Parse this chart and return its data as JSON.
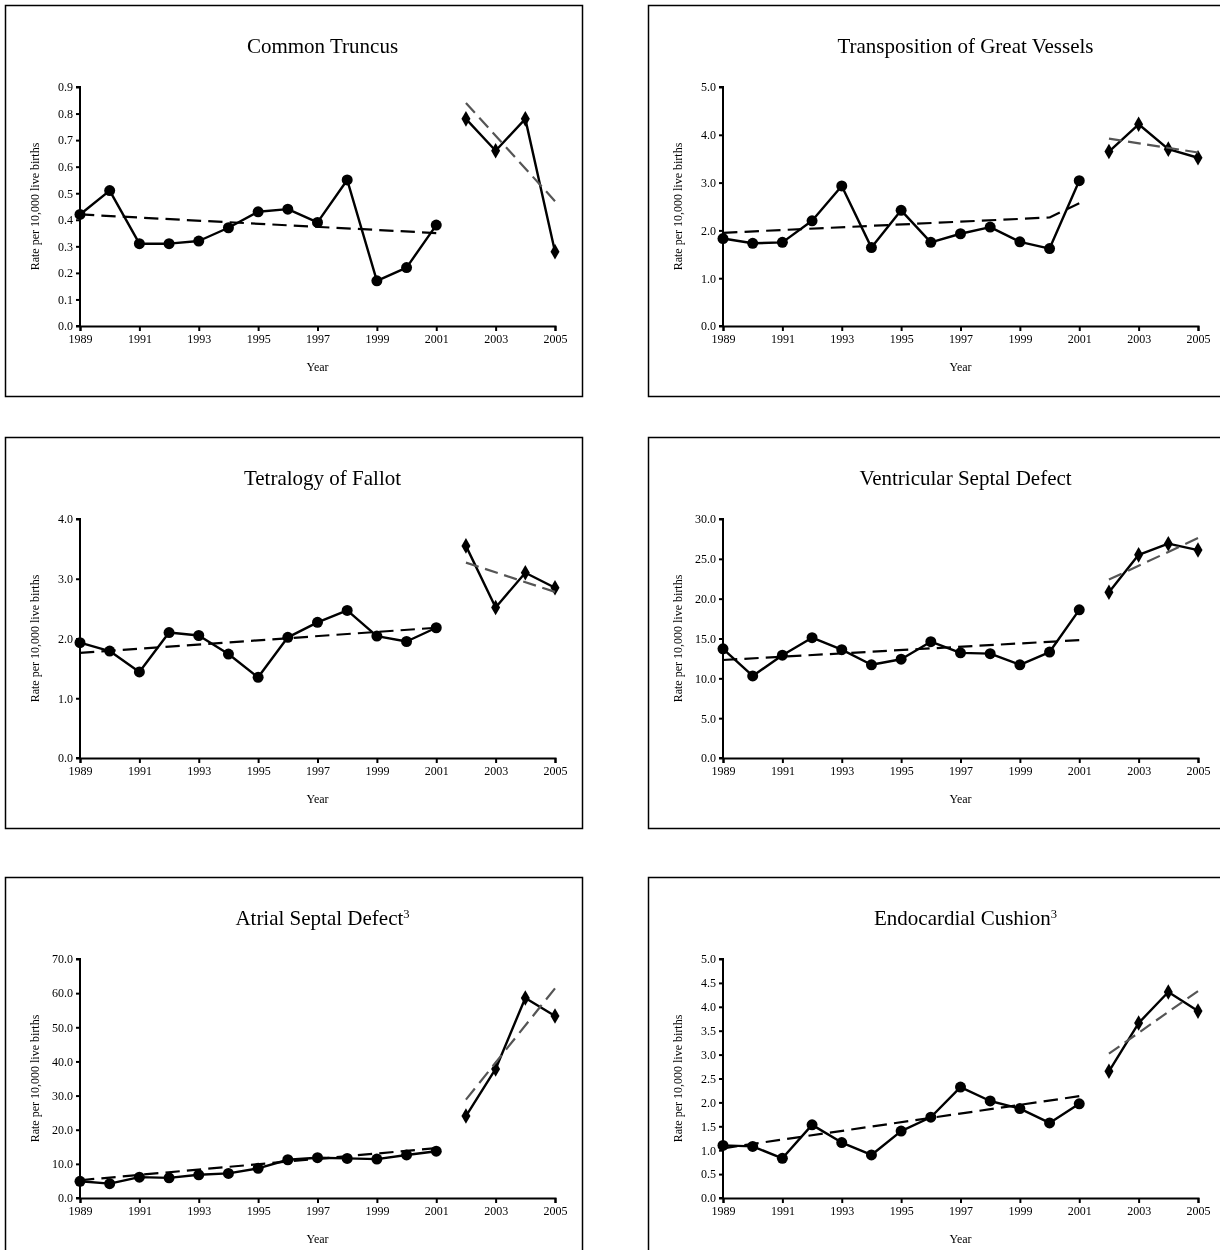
{
  "chart_data": [
    {
      "type": "line",
      "title": "Common Truncus",
      "xlabel": "Year",
      "ylabel": "Rate per 10,000 live births",
      "xlim": [
        1989,
        2005
      ],
      "xticks": [
        1989,
        1991,
        1993,
        1995,
        1997,
        1999,
        2001,
        2003,
        2005
      ],
      "ylim": [
        0,
        0.9
      ],
      "yticks": [
        {
          "value": 0,
          "label": "0.0"
        },
        {
          "value": 0.1,
          "label": "0.1"
        },
        {
          "value": 0.2,
          "label": "0.2"
        },
        {
          "value": 0.3,
          "label": "0.3"
        },
        {
          "value": 0.4,
          "label": "0.4"
        },
        {
          "value": 0.5,
          "label": "0.5"
        },
        {
          "value": 0.6,
          "label": "0.6"
        },
        {
          "value": 0.7,
          "label": "0.7"
        },
        {
          "value": 0.8,
          "label": "0.8"
        },
        {
          "value": 0.9,
          "label": "0.9"
        }
      ],
      "series": [
        {
          "color": "#000000",
          "marker": "circle",
          "line_style": "solid",
          "x": [
            1989,
            1990,
            1991,
            1992,
            1993,
            1994,
            1995,
            1996,
            1997,
            1998,
            1999,
            2000,
            2001
          ],
          "values": [
            0.42,
            0.51,
            0.31,
            0.31,
            0.32,
            0.37,
            0.43,
            0.44,
            0.39,
            0.55,
            0.17,
            0.22,
            0.38
          ]
        },
        {
          "color": "#000000",
          "marker": "diamond",
          "line_style": "solid",
          "x": [
            2002,
            2003,
            2004,
            2005
          ],
          "values": [
            0.78,
            0.66,
            0.78,
            0.28
          ]
        },
        {
          "color": "#000000",
          "marker": "none",
          "line_style": "dashed",
          "x": [
            1989,
            2001
          ],
          "values": [
            0.42,
            0.35
          ]
        },
        {
          "color": "#555555",
          "marker": "none",
          "line_style": "dashed",
          "x": [
            2002,
            2005
          ],
          "values": [
            0.84,
            0.47
          ]
        }
      ]
    },
    {
      "type": "line",
      "title": "Transposition of Great Vessels",
      "xlabel": "Year",
      "ylabel": "Rate per 10,000 live births",
      "xlim": [
        1989,
        2005
      ],
      "xticks": [
        1989,
        1991,
        1993,
        1995,
        1997,
        1999,
        2001,
        2003,
        2005
      ],
      "ylim": [
        0,
        5
      ],
      "yticks": [
        {
          "value": 0,
          "label": "0.0"
        },
        {
          "value": 1,
          "label": "1.0"
        },
        {
          "value": 2,
          "label": "2.0"
        },
        {
          "value": 3,
          "label": "3.0"
        },
        {
          "value": 4,
          "label": "4.0"
        },
        {
          "value": 5,
          "label": "5.0"
        }
      ],
      "series": [
        {
          "color": "#000000",
          "marker": "circle",
          "line_style": "solid",
          "x": [
            1989,
            1990,
            1991,
            1992,
            1993,
            1994,
            1995,
            1996,
            1997,
            1998,
            1999,
            2000,
            2001
          ],
          "values": [
            1.83,
            1.73,
            1.75,
            2.2,
            2.93,
            1.64,
            2.42,
            1.75,
            1.93,
            2.07,
            1.76,
            1.62,
            3.04
          ]
        },
        {
          "color": "#000000",
          "marker": "diamond",
          "line_style": "solid",
          "x": [
            2002,
            2003,
            2004,
            2005
          ],
          "values": [
            3.65,
            4.22,
            3.7,
            3.52
          ]
        },
        {
          "color": "#000000",
          "marker": "none",
          "line_style": "dashed",
          "x": [
            1989,
            2000,
            2001
          ],
          "values": [
            1.95,
            2.27,
            2.57
          ]
        },
        {
          "color": "#555555",
          "marker": "none",
          "line_style": "dashed",
          "x": [
            2002,
            2005
          ],
          "values": [
            3.92,
            3.63
          ]
        }
      ]
    },
    {
      "type": "line",
      "title": "Tetralogy of Fallot",
      "xlabel": "Year",
      "ylabel": "Rate per 10,000 live births",
      "xlim": [
        1989,
        2005
      ],
      "xticks": [
        1989,
        1991,
        1993,
        1995,
        1997,
        1999,
        2001,
        2003,
        2005
      ],
      "ylim": [
        0,
        4
      ],
      "yticks": [
        {
          "value": 0,
          "label": "0.0"
        },
        {
          "value": 1,
          "label": "1.0"
        },
        {
          "value": 2,
          "label": "2.0"
        },
        {
          "value": 3,
          "label": "3.0"
        },
        {
          "value": 4,
          "label": "4.0"
        }
      ],
      "series": [
        {
          "color": "#000000",
          "marker": "circle",
          "line_style": "solid",
          "x": [
            1989,
            1990,
            1991,
            1992,
            1993,
            1994,
            1995,
            1996,
            1997,
            1998,
            1999,
            2000,
            2001
          ],
          "values": [
            1.93,
            1.79,
            1.44,
            2.1,
            2.05,
            1.74,
            1.35,
            2.02,
            2.27,
            2.47,
            2.04,
            1.95,
            2.18
          ]
        },
        {
          "color": "#000000",
          "marker": "diamond",
          "line_style": "solid",
          "x": [
            2002,
            2003,
            2004,
            2005
          ],
          "values": [
            3.55,
            2.52,
            3.1,
            2.85
          ]
        },
        {
          "color": "#000000",
          "marker": "none",
          "line_style": "dashed",
          "x": [
            1989,
            2001
          ],
          "values": [
            1.76,
            2.18
          ]
        },
        {
          "color": "#555555",
          "marker": "none",
          "line_style": "dashed",
          "x": [
            2002,
            2005
          ],
          "values": [
            3.27,
            2.78
          ]
        }
      ]
    },
    {
      "type": "line",
      "title": "Ventricular Septal Defect",
      "xlabel": "Year",
      "ylabel": "Rate per 10,000 live births",
      "xlim": [
        1989,
        2005
      ],
      "xticks": [
        1989,
        1991,
        1993,
        1995,
        1997,
        1999,
        2001,
        2003,
        2005
      ],
      "ylim": [
        0,
        30
      ],
      "yticks": [
        {
          "value": 0,
          "label": "0.0"
        },
        {
          "value": 5,
          "label": "5.0"
        },
        {
          "value": 10,
          "label": "10.0"
        },
        {
          "value": 15,
          "label": "15.0"
        },
        {
          "value": 20,
          "label": "20.0"
        },
        {
          "value": 25,
          "label": "25.0"
        },
        {
          "value": 30,
          "label": "30.0"
        }
      ],
      "series": [
        {
          "color": "#000000",
          "marker": "circle",
          "line_style": "solid",
          "x": [
            1989,
            1990,
            1991,
            1992,
            1993,
            1994,
            1995,
            1996,
            1997,
            1998,
            1999,
            2000,
            2001
          ],
          "values": [
            13.7,
            10.3,
            12.9,
            15.1,
            13.6,
            11.7,
            12.4,
            14.6,
            13.2,
            13.1,
            11.7,
            13.3,
            18.6
          ]
        },
        {
          "color": "#000000",
          "marker": "diamond",
          "line_style": "solid",
          "x": [
            2002,
            2003,
            2004,
            2005
          ],
          "values": [
            20.8,
            25.5,
            26.9,
            26.1
          ]
        },
        {
          "color": "#000000",
          "marker": "none",
          "line_style": "dashed",
          "x": [
            1989,
            2001
          ],
          "values": [
            12.3,
            14.8
          ]
        },
        {
          "color": "#555555",
          "marker": "none",
          "line_style": "dashed",
          "x": [
            2002,
            2005
          ],
          "values": [
            22.4,
            27.6
          ]
        }
      ]
    },
    {
      "type": "line",
      "title": "Atrial Septal Defect$^{3}$",
      "xlabel": "Year",
      "ylabel": "Rate per 10,000 live births",
      "xlim": [
        1989,
        2005
      ],
      "xticks": [
        1989,
        1991,
        1993,
        1995,
        1997,
        1999,
        2001,
        2003,
        2005
      ],
      "ylim": [
        0,
        70
      ],
      "yticks": [
        {
          "value": 0,
          "label": "0.0"
        },
        {
          "value": 10,
          "label": "10.0"
        },
        {
          "value": 20,
          "label": "20.0"
        },
        {
          "value": 30,
          "label": "30.0"
        },
        {
          "value": 40,
          "label": "40.0"
        },
        {
          "value": 50,
          "label": "50.0"
        },
        {
          "value": 60,
          "label": "60.0"
        },
        {
          "value": 70,
          "label": "70.0"
        }
      ],
      "series": [
        {
          "color": "#000000",
          "marker": "circle",
          "line_style": "solid",
          "x": [
            1989,
            1990,
            1991,
            1992,
            1993,
            1994,
            1995,
            1996,
            1997,
            1998,
            1999,
            2000,
            2001
          ],
          "values": [
            4.9,
            4.2,
            6.1,
            5.9,
            6.8,
            7.2,
            8.7,
            11.2,
            11.8,
            11.6,
            11.4,
            12.6,
            13.7
          ]
        },
        {
          "color": "#000000",
          "marker": "diamond",
          "line_style": "solid",
          "x": [
            2002,
            2003,
            2004,
            2005
          ],
          "values": [
            24.0,
            37.8,
            58.6,
            53.3
          ]
        },
        {
          "color": "#000000",
          "marker": "none",
          "line_style": "dashed",
          "x": [
            1989,
            2001
          ],
          "values": [
            5.2,
            14.6
          ]
        },
        {
          "color": "#555555",
          "marker": "none",
          "line_style": "dashed",
          "x": [
            2002,
            2005
          ],
          "values": [
            28.8,
            61.4
          ]
        }
      ]
    },
    {
      "type": "line",
      "title": "Endocardial Cushion$^{3}$",
      "xlabel": "Year",
      "ylabel": "Rate per 10,000 live births",
      "xlim": [
        1989,
        2005
      ],
      "xticks": [
        1989,
        1991,
        1993,
        1995,
        1997,
        1999,
        2001,
        2003,
        2005
      ],
      "ylim": [
        0,
        5
      ],
      "yticks": [
        {
          "value": 0,
          "label": "0.0"
        },
        {
          "value": 0.5,
          "label": "0.5"
        },
        {
          "value": 1,
          "label": "1.0"
        },
        {
          "value": 1.5,
          "label": "1.5"
        },
        {
          "value": 2,
          "label": "2.0"
        },
        {
          "value": 2.5,
          "label": "2.5"
        },
        {
          "value": 3,
          "label": "3.0"
        },
        {
          "value": 3.5,
          "label": "3.5"
        },
        {
          "value": 4,
          "label": "4.0"
        },
        {
          "value": 4.5,
          "label": "4.5"
        },
        {
          "value": 5,
          "label": "5.0"
        }
      ],
      "series": [
        {
          "color": "#000000",
          "marker": "circle",
          "line_style": "solid",
          "x": [
            1989,
            1990,
            1991,
            1992,
            1993,
            1994,
            1995,
            1996,
            1997,
            1998,
            1999,
            2000,
            2001
          ],
          "values": [
            1.1,
            1.08,
            0.83,
            1.53,
            1.16,
            0.9,
            1.4,
            1.69,
            2.32,
            2.03,
            1.87,
            1.57,
            1.97
          ]
        },
        {
          "color": "#000000",
          "marker": "diamond",
          "line_style": "solid",
          "x": [
            2002,
            2003,
            2004,
            2005
          ],
          "values": [
            2.65,
            3.66,
            4.31,
            3.91
          ]
        },
        {
          "color": "#000000",
          "marker": "none",
          "line_style": "dashed",
          "x": [
            1989,
            2001
          ],
          "values": [
            1.04,
            2.13
          ]
        },
        {
          "color": "#555555",
          "marker": "none",
          "line_style": "dashed",
          "x": [
            2002,
            2005
          ],
          "values": [
            3.02,
            4.33
          ]
        }
      ]
    }
  ]
}
